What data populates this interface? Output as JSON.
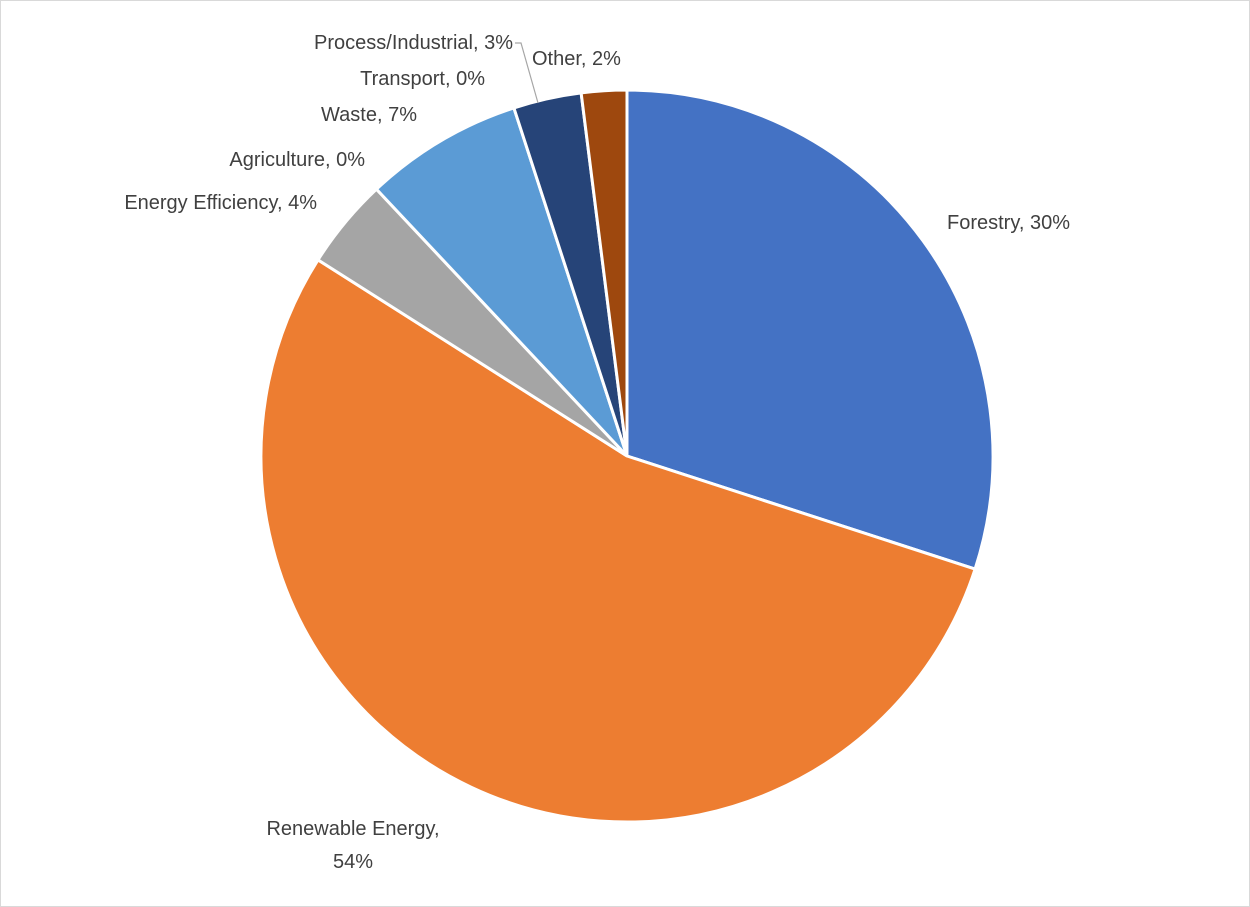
{
  "chart_data": {
    "type": "pie",
    "title": "",
    "start_angle_deg": 0,
    "direction": "clockwise",
    "slices": [
      {
        "label": "Forestry",
        "value": 30,
        "label_text": "Forestry, 30%",
        "color": "#4472c4"
      },
      {
        "label": "Renewable Energy",
        "value": 54,
        "label_text": "Renewable Energy, 54%",
        "color": "#ed7d31"
      },
      {
        "label": "Energy Efficiency",
        "value": 4,
        "label_text": "Energy Efficiency, 4%",
        "color": "#a5a5a5"
      },
      {
        "label": "Agriculture",
        "value": 0,
        "label_text": "Agriculture, 0%",
        "color": "#ffc000"
      },
      {
        "label": "Waste",
        "value": 7,
        "label_text": "Waste, 7%",
        "color": "#5b9bd5"
      },
      {
        "label": "Transport",
        "value": 0,
        "label_text": "Transport, 0%",
        "color": "#70ad47"
      },
      {
        "label": "Process/Industrial",
        "value": 3,
        "label_text": "Process/Industrial, 3%",
        "color": "#264478"
      },
      {
        "label": "Other",
        "value": 2,
        "label_text": "Other, 2%",
        "color": "#9e480e"
      }
    ],
    "legend": "none"
  }
}
